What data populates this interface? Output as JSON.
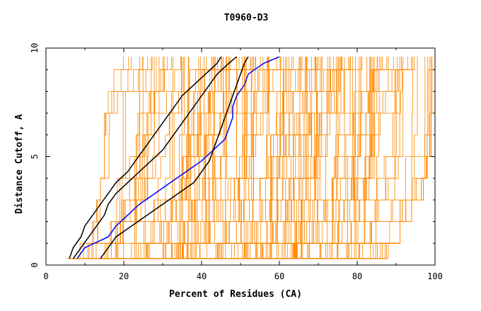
{
  "chart_data": {
    "type": "line",
    "title": "T0960-D3",
    "xlabel": "Percent of Residues (CA)",
    "ylabel": "Distance Cutoff, A",
    "xlim": [
      0,
      100
    ],
    "ylim": [
      0,
      10
    ],
    "x_ticks": [
      0,
      20,
      40,
      60,
      80,
      100
    ],
    "y_ticks": [
      0,
      5,
      10
    ],
    "grid": false,
    "legend": "none",
    "colors": {
      "background_series": "#ff8800",
      "highlight": "#0000ff",
      "reference": "#000000",
      "axes": "#000000"
    },
    "background_series_count": 150,
    "background_series_envelope": {
      "y": [
        0.3,
        1,
        2,
        3,
        4,
        5,
        6,
        7,
        8,
        9,
        9.6
      ],
      "x_min": [
        4,
        8,
        11,
        13,
        14,
        15,
        15,
        15,
        16,
        17,
        17
      ],
      "x_max": [
        38,
        88,
        91,
        94,
        97,
        98,
        99,
        99,
        100,
        100,
        100
      ]
    },
    "series": [
      {
        "role": "highlight",
        "color": "#0000ff",
        "y": [
          0.3,
          0.8,
          1.3,
          1.8,
          2.3,
          2.8,
          3.3,
          3.8,
          4.3,
          4.8,
          5.3,
          5.8,
          6.3,
          6.8,
          7.3,
          7.8,
          8.3,
          8.8,
          9.3,
          9.6
        ],
        "x": [
          8,
          10,
          16,
          18,
          21,
          24,
          28,
          32,
          36,
          40,
          43,
          46,
          47,
          48,
          48,
          49,
          51,
          52,
          56,
          60
        ]
      },
      {
        "role": "reference",
        "color": "#000000",
        "y": [
          0.3,
          0.8,
          1.3,
          1.8,
          2.3,
          2.8,
          3.3,
          3.8,
          4.3,
          4.8,
          5.3,
          5.8,
          6.3,
          6.8,
          7.3,
          7.8,
          8.3,
          8.8,
          9.3,
          9.6
        ],
        "x": [
          6,
          7,
          9,
          10,
          12,
          14,
          16,
          18,
          21,
          23,
          25,
          27,
          29,
          31,
          33,
          35,
          38,
          41,
          44,
          45
        ]
      },
      {
        "role": "reference",
        "color": "#000000",
        "y": [
          0.3,
          0.8,
          1.3,
          1.8,
          2.3,
          2.8,
          3.3,
          3.8,
          4.3,
          4.8,
          5.3,
          5.8,
          6.3,
          6.8,
          7.3,
          7.8,
          8.3,
          8.8,
          9.3,
          9.6
        ],
        "x": [
          7,
          9,
          11,
          13,
          15,
          16,
          18,
          21,
          24,
          27,
          30,
          32,
          34,
          36,
          38,
          40,
          42,
          44,
          47,
          49
        ]
      },
      {
        "role": "reference",
        "color": "#000000",
        "y": [
          0.3,
          0.8,
          1.3,
          1.8,
          2.3,
          2.8,
          3.3,
          3.8,
          4.3,
          4.8,
          5.3,
          5.8,
          6.3,
          6.8,
          7.3,
          7.8,
          8.3,
          8.8,
          9.3,
          9.6
        ],
        "x": [
          14,
          16,
          18,
          22,
          26,
          30,
          34,
          38,
          40,
          42,
          43,
          44,
          45,
          46,
          47,
          48,
          49,
          50,
          51,
          52
        ]
      }
    ]
  }
}
